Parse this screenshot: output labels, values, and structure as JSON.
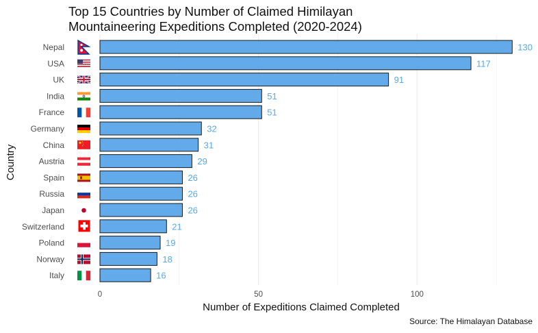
{
  "chart_data": {
    "type": "bar",
    "orientation": "horizontal",
    "title_lines": [
      "Top 15 Countries by Number of Claimed Himilayan",
      "Mountaineering Expeditions Completed (2020-2024)"
    ],
    "xlabel": "Number of Expeditions Claimed Completed",
    "ylabel": "Country",
    "caption": "Source: The Himalayan Database",
    "xlim": [
      0,
      130
    ],
    "xticks": [
      0,
      50,
      100
    ],
    "grid": true,
    "categories": [
      "Nepal",
      "USA",
      "UK",
      "India",
      "France",
      "Germany",
      "China",
      "Austria",
      "Spain",
      "Russia",
      "Japan",
      "Switzerland",
      "Poland",
      "Norway",
      "Italy"
    ],
    "values": [
      130,
      117,
      91,
      51,
      51,
      32,
      31,
      29,
      26,
      26,
      26,
      21,
      19,
      18,
      16
    ],
    "flag_icons": [
      "nepal-flag-icon",
      "usa-flag-icon",
      "uk-flag-icon",
      "india-flag-icon",
      "france-flag-icon",
      "germany-flag-icon",
      "china-flag-icon",
      "austria-flag-icon",
      "spain-flag-icon",
      "russia-flag-icon",
      "japan-flag-icon",
      "switzerland-flag-icon",
      "poland-flag-icon",
      "norway-flag-icon",
      "italy-flag-icon"
    ],
    "colors": {
      "bar": "#63aaeb",
      "bar_border": "#1a1a1a",
      "value_label": "#5aa9e6",
      "grid": "#ebebeb"
    }
  }
}
